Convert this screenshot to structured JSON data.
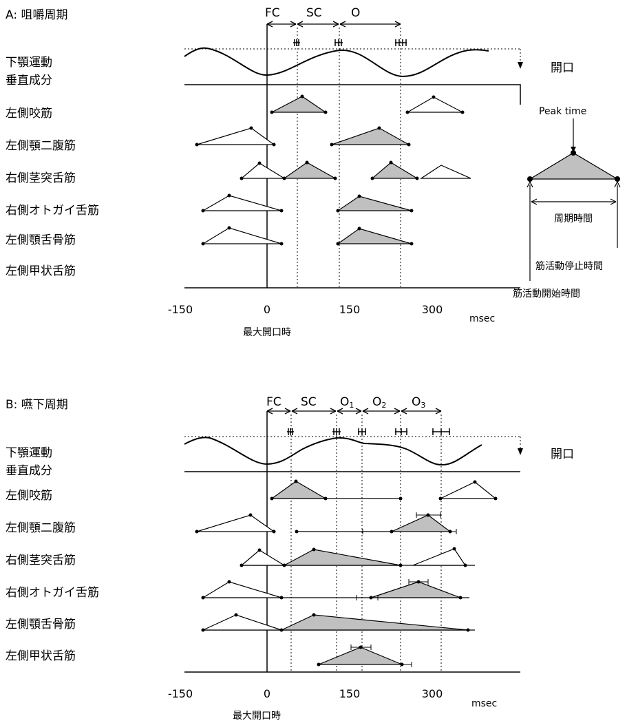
{
  "panels": [
    {
      "title": "A: 咀嚼周期",
      "phases": [
        {
          "label": "FC",
          "sub": ""
        },
        {
          "label": "SC",
          "sub": ""
        },
        {
          "label": "O",
          "sub": ""
        }
      ],
      "jaw_label_1": "下顎運動",
      "jaw_label_2": "垂直成分",
      "open_label": "開口",
      "muscles": [
        "左側咬筋",
        "左側顎二腹筋",
        "右側茎突舌筋",
        "右側オトガイ舌筋",
        "左側顎舌骨筋",
        "左側甲状舌筋"
      ],
      "xticks": [
        "-150",
        "0",
        "150",
        "300"
      ],
      "unit": "msec",
      "zero_label": "最大開口時"
    },
    {
      "title": "B: 嚥下周期",
      "phases": [
        {
          "label": "FC",
          "sub": ""
        },
        {
          "label": "SC",
          "sub": ""
        },
        {
          "label": "O",
          "sub": "1"
        },
        {
          "label": "O",
          "sub": "2"
        },
        {
          "label": "O",
          "sub": "3"
        }
      ],
      "jaw_label_1": "下顎運動",
      "jaw_label_2": "垂直成分",
      "open_label": "開口",
      "muscles": [
        "左側咬筋",
        "左側顎二腹筋",
        "右側茎突舌筋",
        "右側オトガイ舌筋",
        "左側顎舌骨筋",
        "左側甲状舌筋"
      ],
      "xticks": [
        "-150",
        "0",
        "150",
        "300"
      ],
      "unit": "msec",
      "zero_label": "最大開口時"
    }
  ],
  "legend": {
    "peak_time": "Peak time",
    "cycle_time": "周期時間",
    "stop_time": "筋活動停止時間",
    "start_time": "筋活動開始時間"
  },
  "colors": {
    "fill_active": "#c0c0c0",
    "line": "#000000",
    "background": "#ffffff"
  }
}
